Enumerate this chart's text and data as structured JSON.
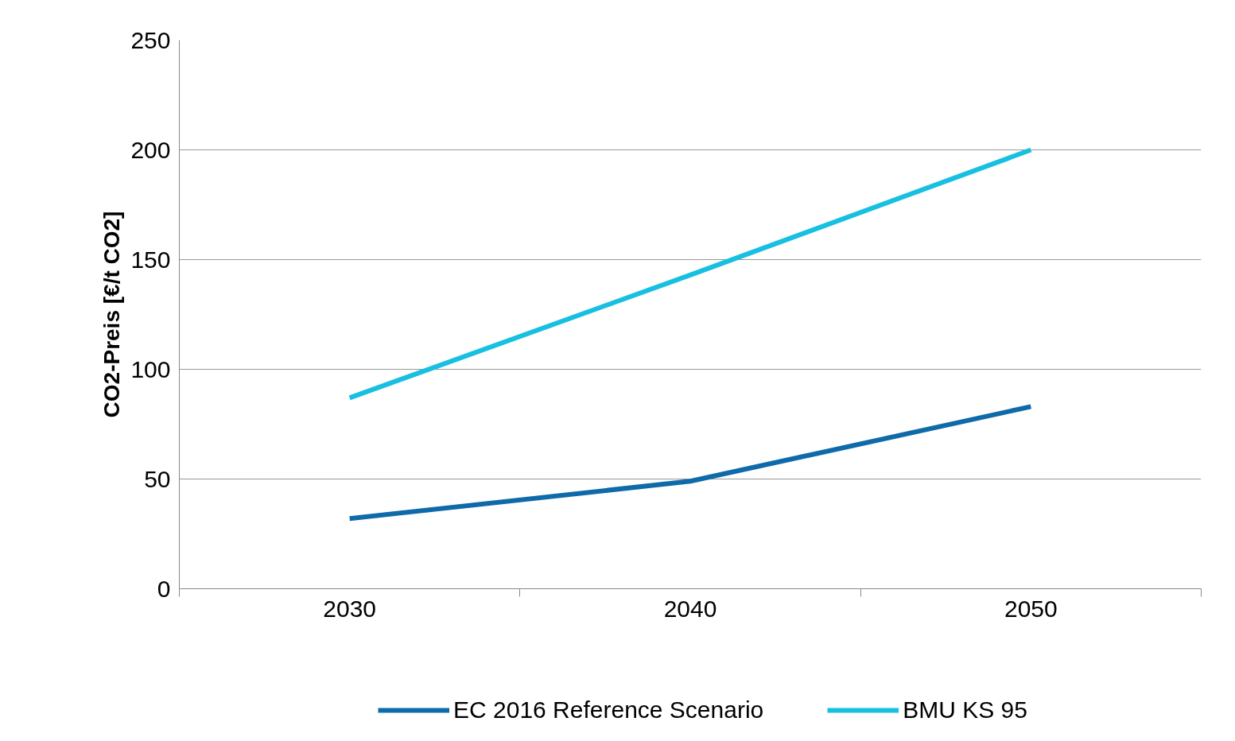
{
  "chart_data": {
    "type": "line",
    "ylabel": "CO2-Preis [€/t CO2]",
    "categories": [
      "2030",
      "2040",
      "2050"
    ],
    "series": [
      {
        "name": "EC 2016 Reference Scenario",
        "color": "#0e6aa8",
        "values": [
          32,
          49,
          83
        ]
      },
      {
        "name": "BMU KS 95",
        "color": "#17bfe0",
        "values": [
          87,
          143,
          200
        ]
      }
    ],
    "ylim": [
      0,
      250
    ],
    "yticks": [
      0,
      50,
      100,
      150,
      200,
      250
    ],
    "grid": "y",
    "legend": "bottom",
    "marker": "none",
    "line_style": "solid"
  }
}
